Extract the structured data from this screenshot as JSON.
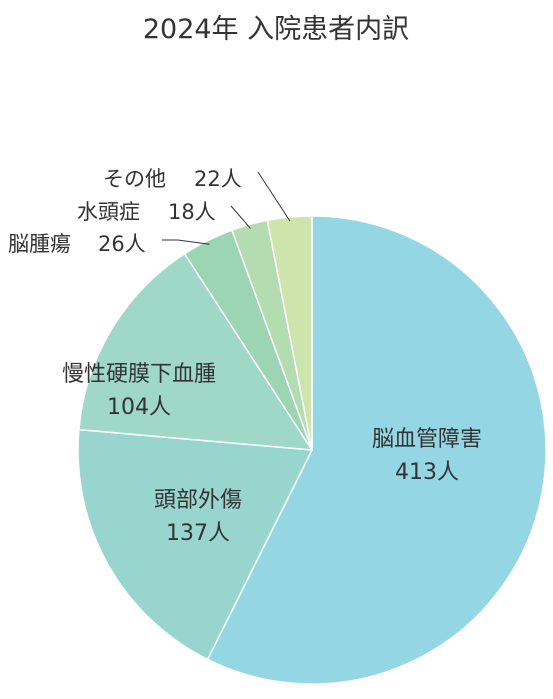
{
  "chart_data": {
    "type": "pie",
    "title": "2024年 入院患者内訳",
    "unit": "人",
    "slices": [
      {
        "name": "脳血管障害",
        "value": 413,
        "label": "413人",
        "color": "#94d6e4"
      },
      {
        "name": "頭部外傷",
        "value": 137,
        "label": "137人",
        "color": "#99d5cf"
      },
      {
        "name": "慢性硬膜下血腫",
        "value": 104,
        "label": "104人",
        "color": "#9fd8c6"
      },
      {
        "name": "脳腫瘍",
        "value": 26,
        "label": "26人",
        "color": "#9cd5b3"
      },
      {
        "name": "水頭症",
        "value": 18,
        "label": "18人",
        "color": "#b3dcb1"
      },
      {
        "name": "その他",
        "value": 22,
        "label": "22人",
        "color": "#cde5ac"
      }
    ]
  }
}
